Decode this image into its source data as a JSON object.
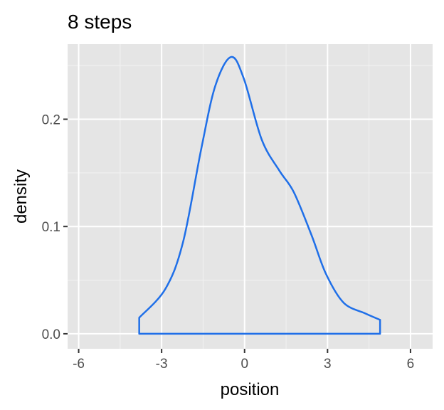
{
  "chart_data": {
    "type": "line",
    "title": "8 steps",
    "xlabel": "position",
    "ylabel": "density",
    "xlim": [
      -6.4,
      6.8
    ],
    "ylim": [
      -0.014,
      0.27
    ],
    "xticks": [
      -6,
      -3,
      0,
      3,
      6
    ],
    "xtick_labels": [
      "-6",
      "-3",
      "0",
      "3",
      "6"
    ],
    "yticks": [
      0.0,
      0.1,
      0.2
    ],
    "ytick_labels": [
      "0.0",
      "0.1",
      "0.2"
    ],
    "grid": true,
    "line_color": "#1f6fe8",
    "panel_color": "#e5e5e5",
    "x": [
      -3.81,
      -2.86,
      -2.22,
      -1.57,
      -1.06,
      -0.49,
      -0.03,
      0.62,
      1.26,
      1.78,
      2.42,
      2.94,
      3.58,
      4.36,
      4.9
    ],
    "y": [
      0.015,
      0.042,
      0.086,
      0.172,
      0.231,
      0.258,
      0.238,
      0.181,
      0.152,
      0.132,
      0.092,
      0.056,
      0.029,
      0.019,
      0.013
    ]
  }
}
